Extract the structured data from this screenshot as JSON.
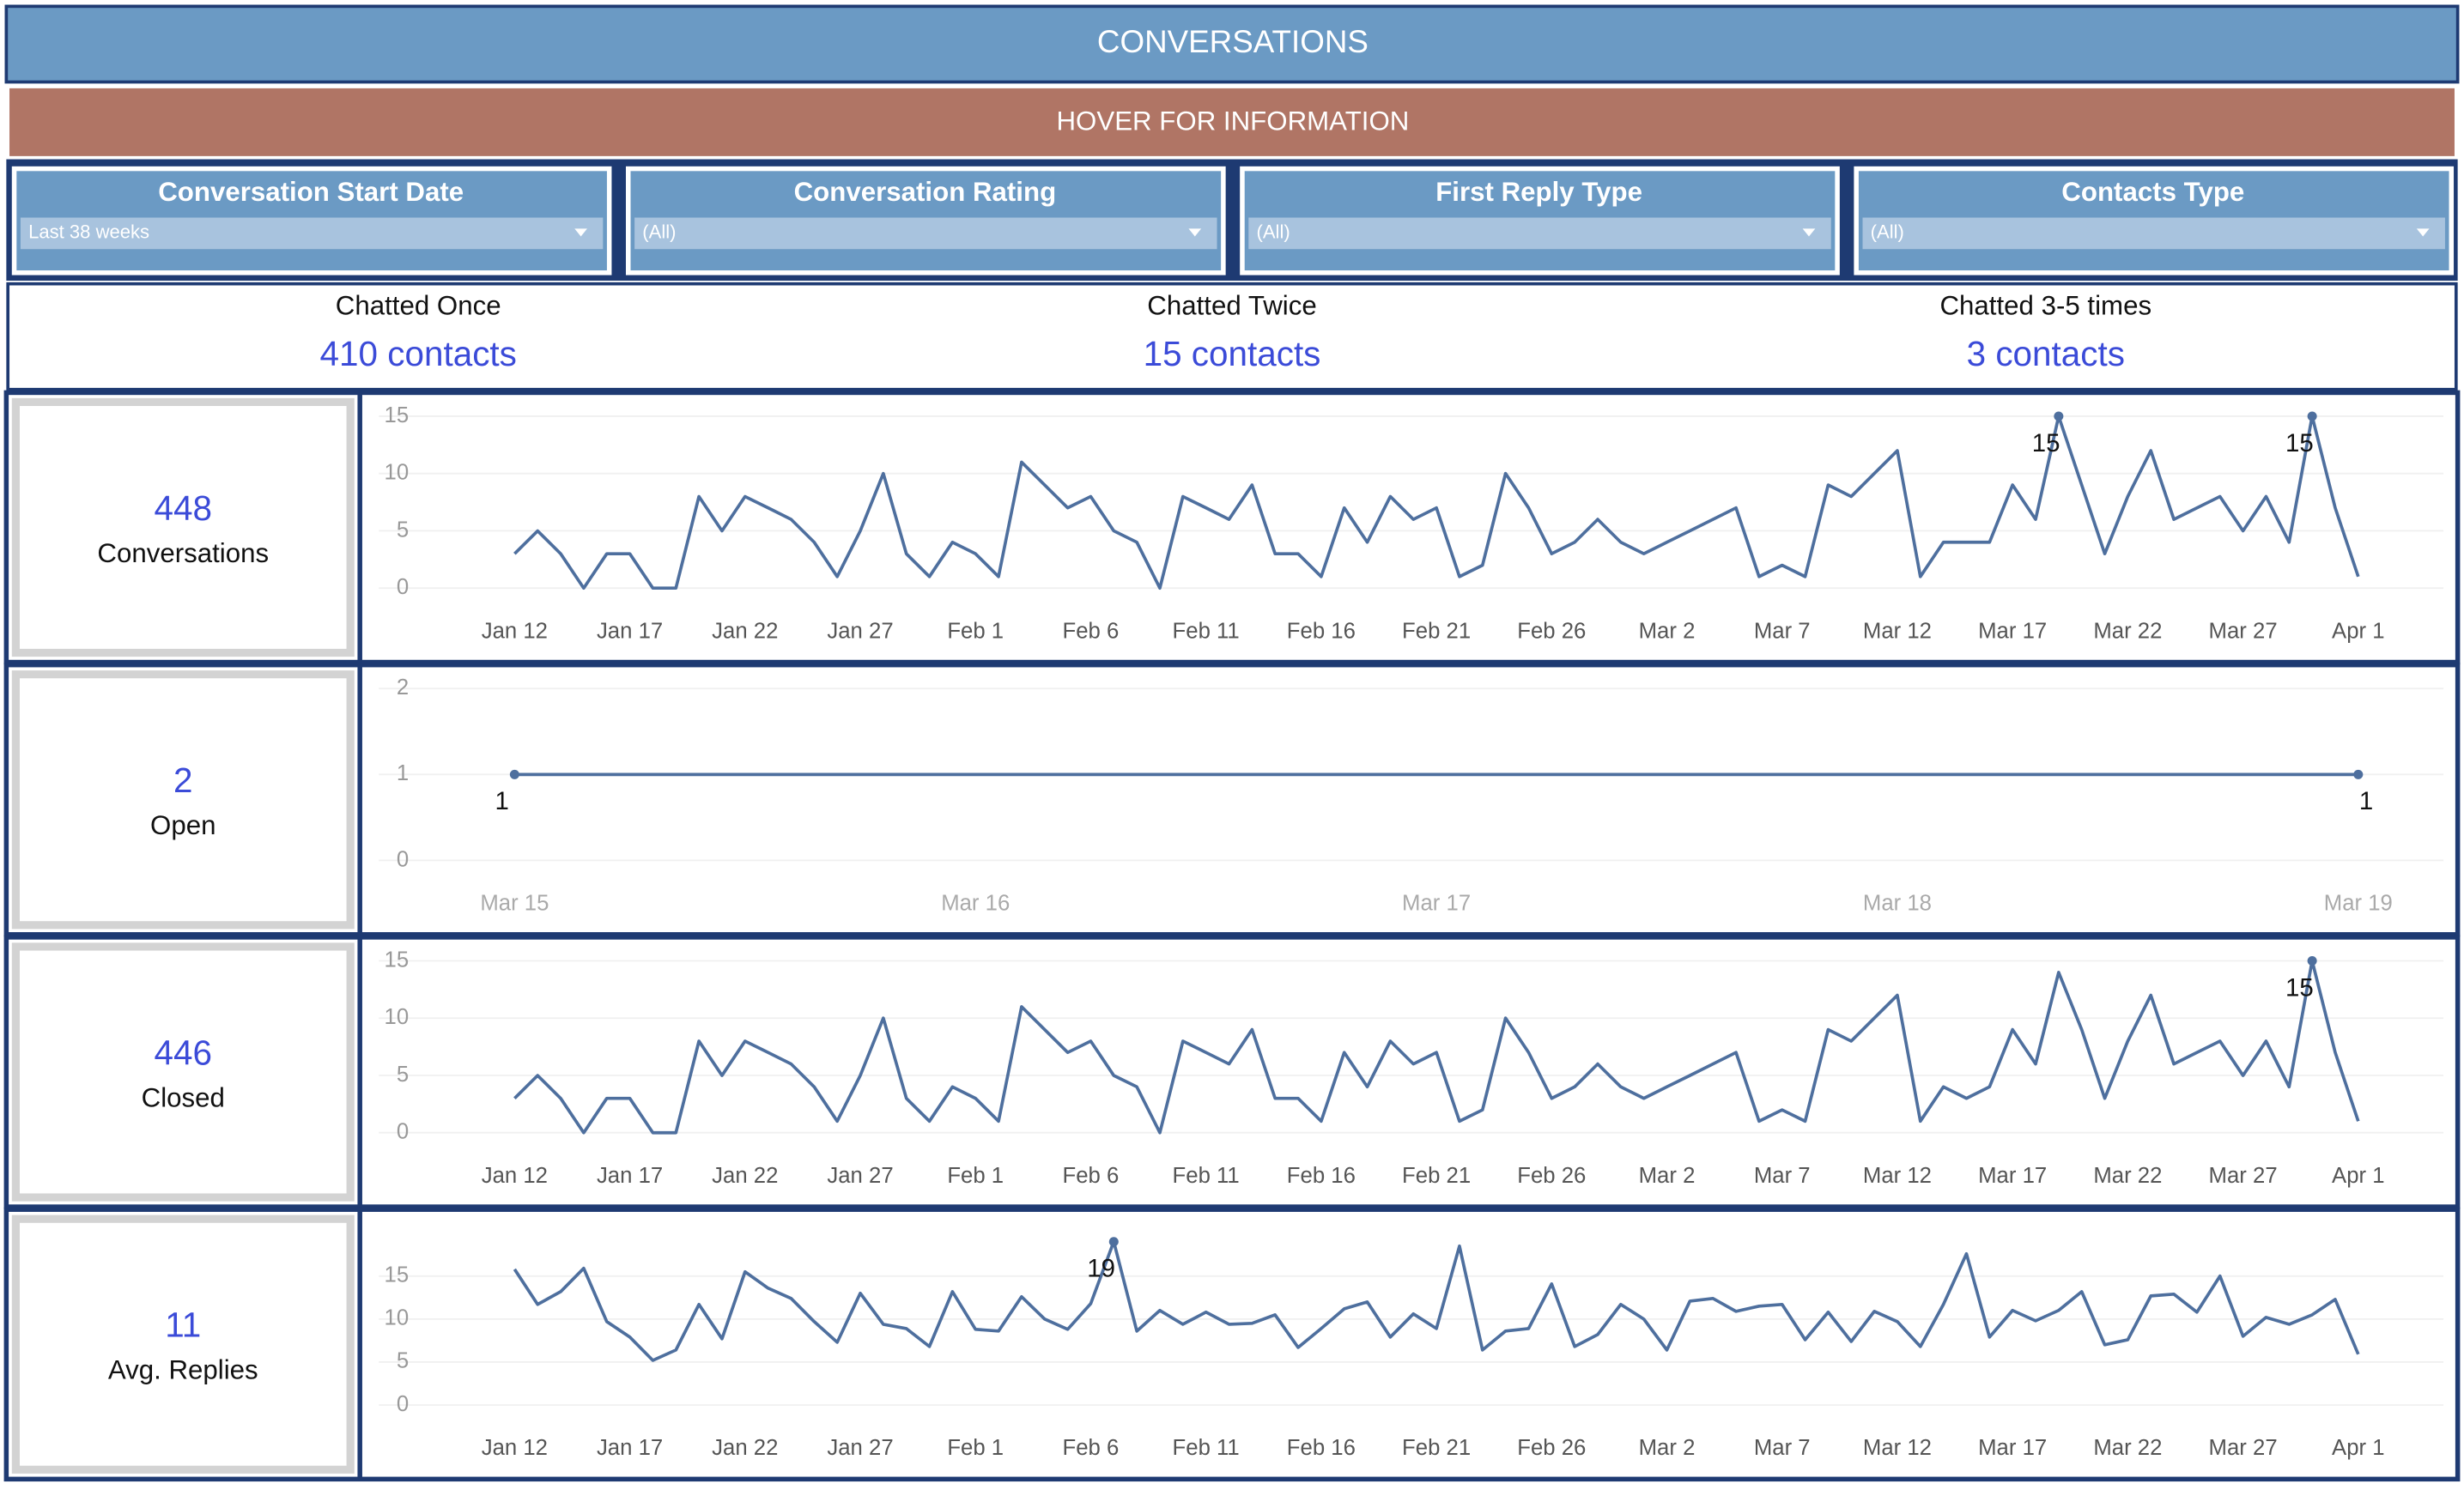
{
  "header": {
    "title": "CONVERSATIONS",
    "banner": "HOVER FOR INFORMATION"
  },
  "filters": [
    {
      "label": "Conversation Start Date",
      "value": "Last 38 weeks"
    },
    {
      "label": "Conversation Rating",
      "value": "(All)"
    },
    {
      "label": "First Reply Type",
      "value": "(All)"
    },
    {
      "label": "Contacts Type",
      "value": "(All)"
    }
  ],
  "summary": [
    {
      "label": "Chatted Once",
      "value": "410 contacts"
    },
    {
      "label": "Chatted Twice",
      "value": "15 contacts"
    },
    {
      "label": "Chatted 3-5 times",
      "value": "3 contacts"
    }
  ],
  "panels": [
    {
      "value": 448,
      "label": "Conversations",
      "chart": {
        "type": "line",
        "color": "#4e6f9e",
        "grid": true,
        "categories": [
          "Jan 12",
          null,
          null,
          null,
          null,
          "Jan 17",
          null,
          null,
          null,
          null,
          "Jan 22",
          null,
          null,
          null,
          null,
          "Jan 27",
          null,
          null,
          null,
          null,
          "Feb 1",
          null,
          null,
          null,
          null,
          "Feb 6",
          null,
          null,
          null,
          null,
          "Feb 11",
          null,
          null,
          null,
          null,
          "Feb 16",
          null,
          null,
          null,
          null,
          "Feb 21",
          null,
          null,
          null,
          null,
          "Feb 26",
          null,
          null,
          null,
          null,
          "Mar 2",
          null,
          null,
          null,
          null,
          "Mar 7",
          null,
          null,
          null,
          null,
          "Mar 12",
          null,
          null,
          null,
          null,
          "Mar 17",
          null,
          null,
          null,
          null,
          "Mar 22",
          null,
          null,
          null,
          null,
          "Mar 27",
          null,
          null,
          null,
          null,
          "Apr 1"
        ],
        "values": [
          3,
          5,
          3,
          0,
          3,
          3,
          0,
          0,
          8,
          5,
          8,
          7,
          6,
          4,
          1,
          5,
          10,
          3,
          1,
          4,
          3,
          1,
          11,
          9,
          7,
          8,
          5,
          4,
          0,
          8,
          7,
          6,
          9,
          3,
          3,
          1,
          7,
          4,
          8,
          6,
          7,
          1,
          2,
          10,
          7,
          3,
          4,
          6,
          4,
          3,
          4,
          5,
          6,
          7,
          1,
          2,
          1,
          9,
          8,
          10,
          12,
          1,
          4,
          4,
          4,
          9,
          6,
          15,
          9,
          3,
          8,
          12,
          6,
          7,
          8,
          5,
          8,
          4,
          15,
          7,
          1
        ],
        "ylim": [
          0,
          15
        ],
        "yticks": [
          0,
          5,
          10,
          15
        ]
      }
    },
    {
      "value": 2,
      "label": "Open",
      "chart": {
        "type": "line",
        "color": "#4e6f9e",
        "grid": true,
        "categories": [
          "Mar 15",
          "Mar 16",
          "Mar 17",
          "Mar 18",
          "Mar 19"
        ],
        "x": [
          "Mar 15",
          "Mar 19"
        ],
        "values": [
          1,
          1
        ],
        "ylim": [
          0,
          2
        ],
        "yticks": [
          0,
          1,
          2
        ]
      }
    },
    {
      "value": 446,
      "label": "Closed",
      "chart": {
        "type": "line",
        "color": "#4e6f9e",
        "grid": true,
        "categories": [
          "Jan 12",
          null,
          null,
          null,
          null,
          "Jan 17",
          null,
          null,
          null,
          null,
          "Jan 22",
          null,
          null,
          null,
          null,
          "Jan 27",
          null,
          null,
          null,
          null,
          "Feb 1",
          null,
          null,
          null,
          null,
          "Feb 6",
          null,
          null,
          null,
          null,
          "Feb 11",
          null,
          null,
          null,
          null,
          "Feb 16",
          null,
          null,
          null,
          null,
          "Feb 21",
          null,
          null,
          null,
          null,
          "Feb 26",
          null,
          null,
          null,
          null,
          "Mar 2",
          null,
          null,
          null,
          null,
          "Mar 7",
          null,
          null,
          null,
          null,
          "Mar 12",
          null,
          null,
          null,
          null,
          "Mar 17",
          null,
          null,
          null,
          null,
          "Mar 22",
          null,
          null,
          null,
          null,
          "Mar 27",
          null,
          null,
          null,
          null,
          "Apr 1"
        ],
        "values": [
          3,
          5,
          3,
          0,
          3,
          3,
          0,
          0,
          8,
          5,
          8,
          7,
          6,
          4,
          1,
          5,
          10,
          3,
          1,
          4,
          3,
          1,
          11,
          9,
          7,
          8,
          5,
          4,
          0,
          8,
          7,
          6,
          9,
          3,
          3,
          1,
          7,
          4,
          8,
          6,
          7,
          1,
          2,
          10,
          7,
          3,
          4,
          6,
          4,
          3,
          4,
          5,
          6,
          7,
          1,
          2,
          1,
          9,
          8,
          10,
          12,
          1,
          4,
          3,
          4,
          9,
          6,
          14,
          9,
          3,
          8,
          12,
          6,
          7,
          8,
          5,
          8,
          4,
          15,
          7,
          1
        ],
        "ylim": [
          0,
          15
        ],
        "yticks": [
          0,
          5,
          10,
          15
        ]
      }
    },
    {
      "value": 11,
      "label": "Avg. Replies",
      "chart": {
        "type": "line",
        "color": "#4e6f9e",
        "grid": true,
        "categories": [
          "Jan 12",
          null,
          null,
          null,
          null,
          "Jan 17",
          null,
          null,
          null,
          null,
          "Jan 22",
          null,
          null,
          null,
          null,
          "Jan 27",
          null,
          null,
          null,
          null,
          "Feb 1",
          null,
          null,
          null,
          null,
          "Feb 6",
          null,
          null,
          null,
          null,
          "Feb 11",
          null,
          null,
          null,
          null,
          "Feb 16",
          null,
          null,
          null,
          null,
          "Feb 21",
          null,
          null,
          null,
          null,
          "Feb 26",
          null,
          null,
          null,
          null,
          "Mar 2",
          null,
          null,
          null,
          null,
          "Mar 7",
          null,
          null,
          null,
          null,
          "Mar 12",
          null,
          null,
          null,
          null,
          "Mar 17",
          null,
          null,
          null,
          null,
          "Mar 22",
          null,
          null,
          null,
          null,
          "Mar 27",
          null,
          null,
          null,
          null,
          "Apr 1"
        ],
        "values": [
          15.8,
          11.7,
          13.2,
          15.9,
          9.7,
          7.9,
          5.2,
          6.4,
          11.7,
          7.7,
          15.5,
          13.6,
          12.4,
          9.7,
          7.3,
          13,
          9.4,
          8.9,
          6.8,
          13.2,
          8.8,
          8.6,
          12.6,
          10,
          8.8,
          11.8,
          19,
          8.6,
          11,
          9.4,
          10.8,
          9.4,
          9.5,
          10.5,
          6.7,
          8.9,
          11.2,
          12,
          7.9,
          10.6,
          8.9,
          18.5,
          6.4,
          8.6,
          8.9,
          14.1,
          6.8,
          8.2,
          11.7,
          10,
          6.4,
          12.1,
          12.4,
          10.9,
          11.5,
          11.7,
          7.6,
          10.8,
          7.4,
          10.9,
          9.7,
          6.8,
          11.7,
          17.6,
          7.9,
          11,
          9.8,
          11,
          13.2,
          7,
          7.6,
          12.7,
          12.9,
          10.8,
          15,
          8,
          10.2,
          9.4,
          10.5,
          12.3,
          5.9
        ],
        "ylim": [
          0,
          20
        ],
        "yticks": [
          0,
          5,
          10,
          15
        ]
      }
    }
  ]
}
